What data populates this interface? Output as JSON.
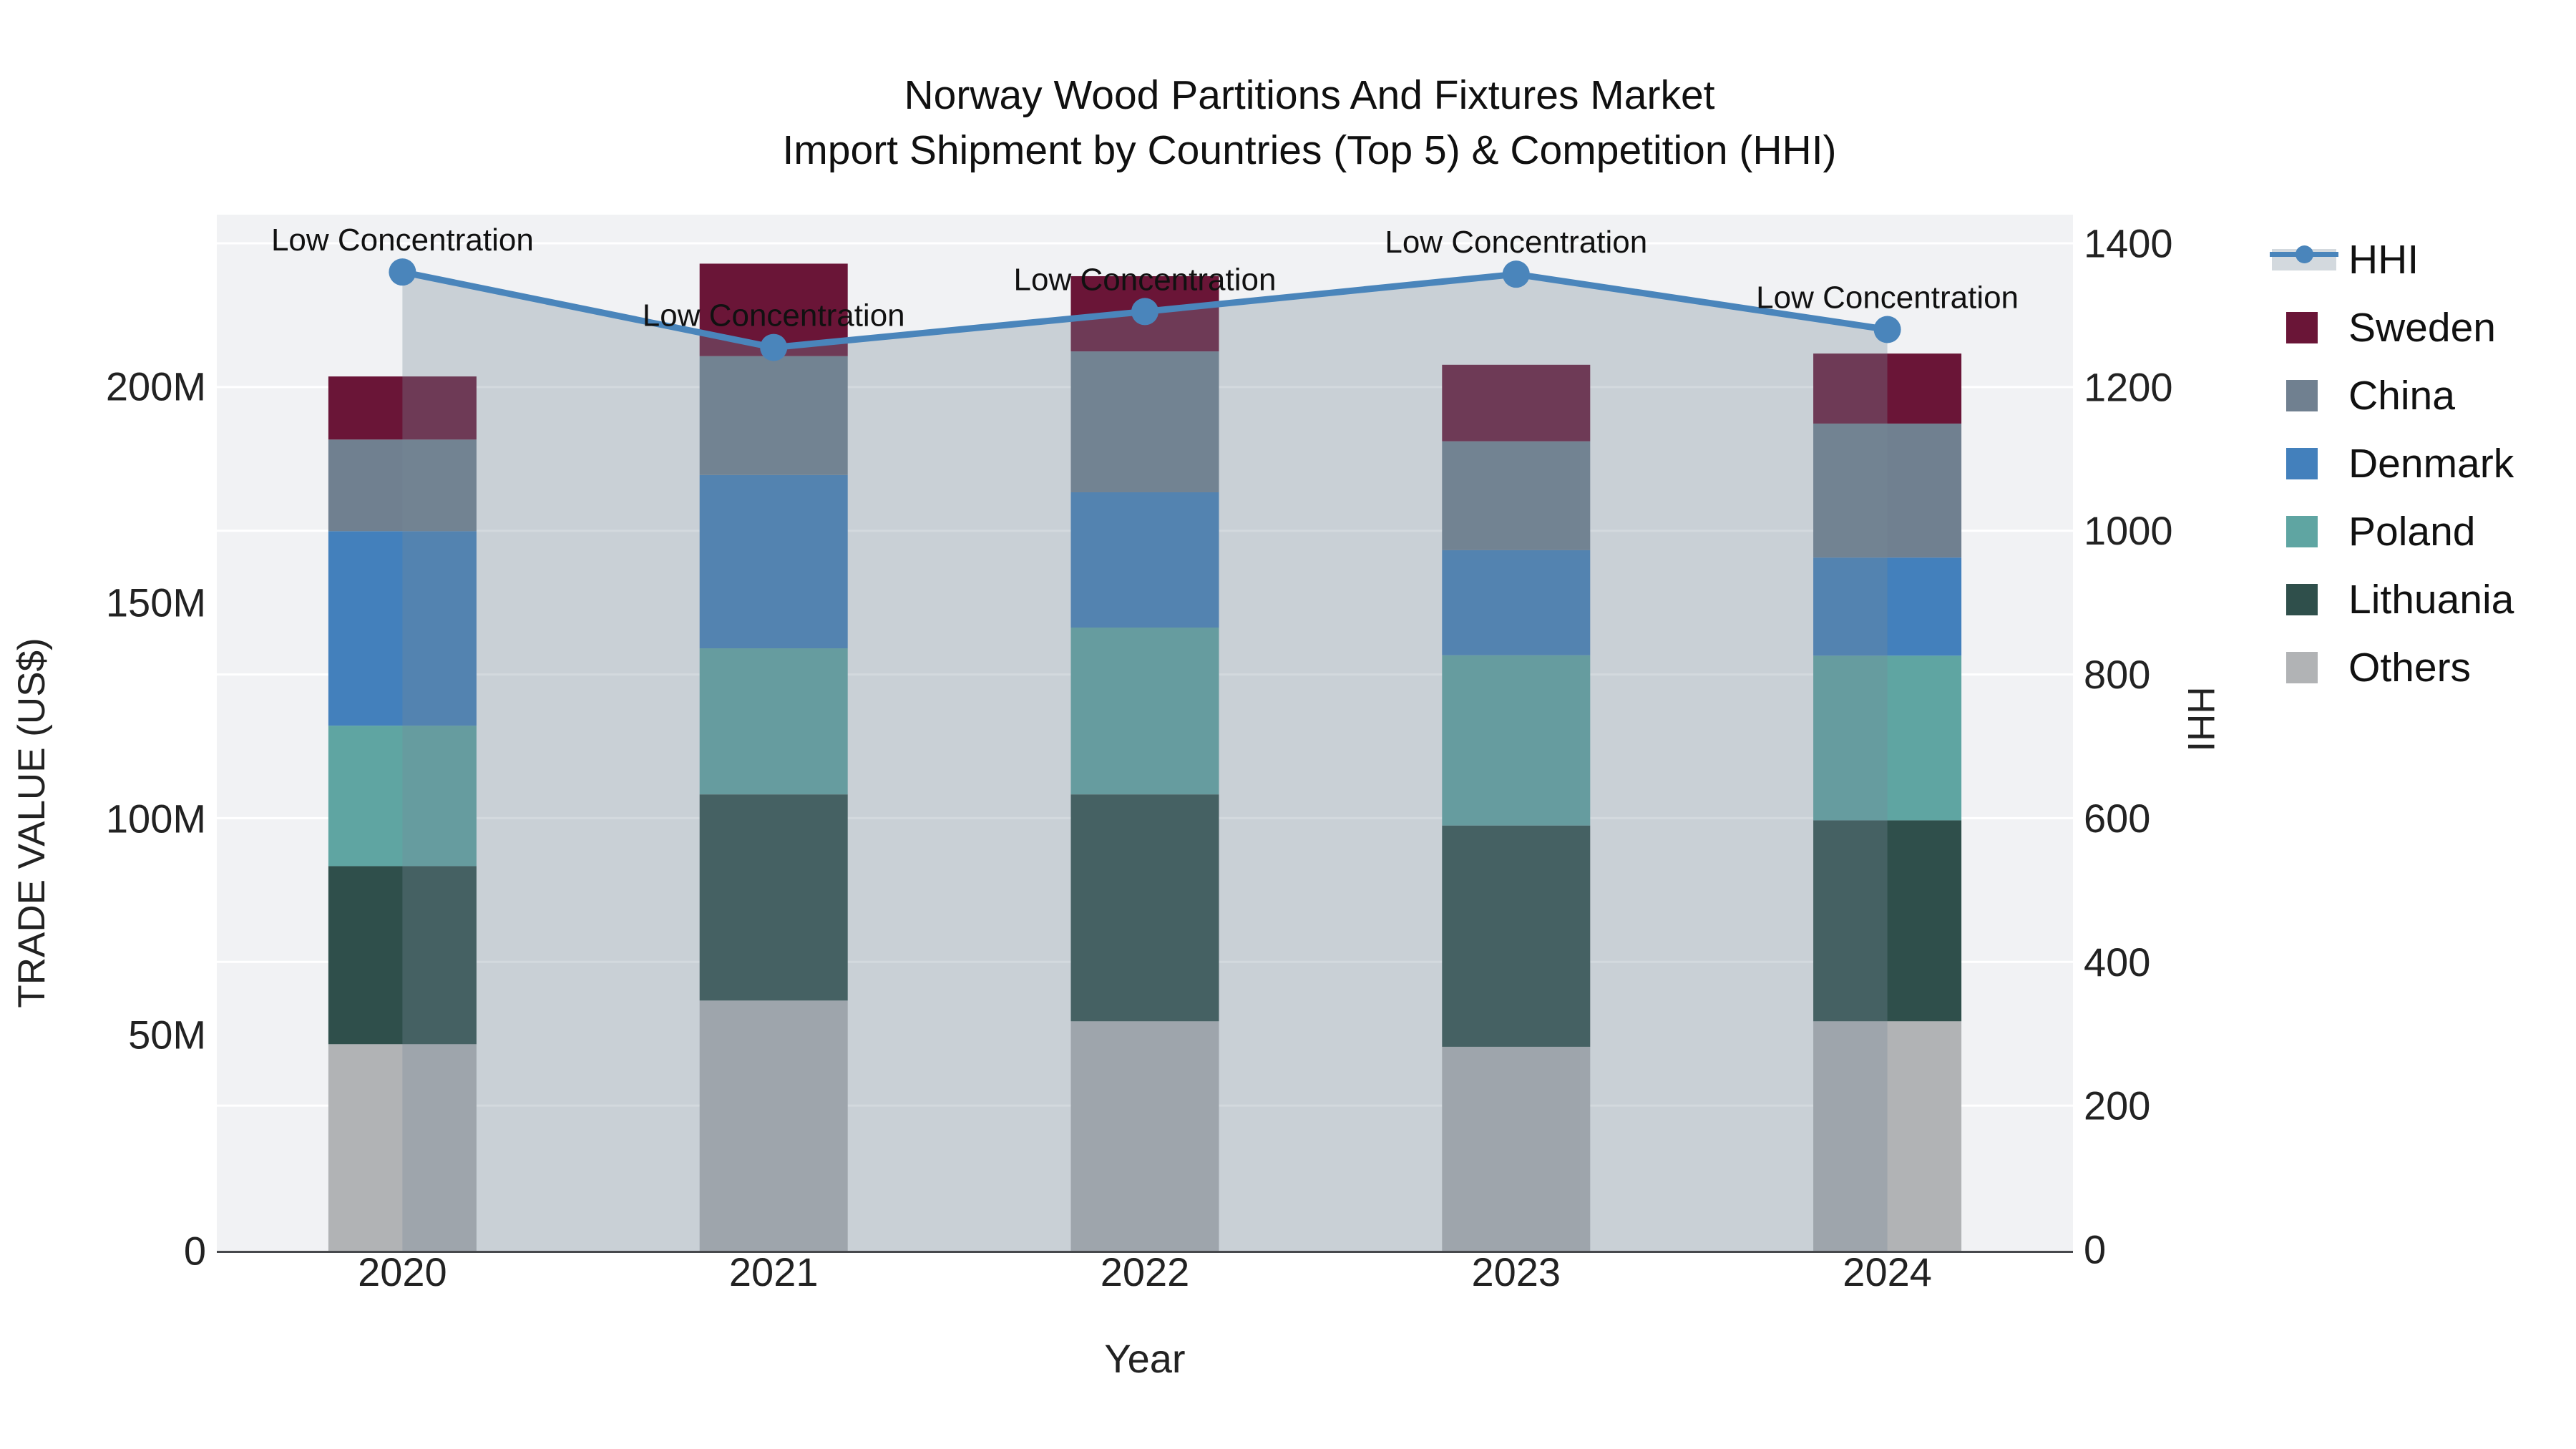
{
  "title": {
    "line1": "Norway Wood Partitions And Fixtures Market",
    "line2": "Import Shipment by Countries (Top 5) & Competition (HHI)"
  },
  "chart_data": {
    "type": "bar",
    "mode": "stacked-bars-with-line-overlay",
    "categories": [
      "2020",
      "2021",
      "2022",
      "2023",
      "2024"
    ],
    "value_unit": "millions USD",
    "series": [
      {
        "name": "Sweden",
        "color": "#6A1537",
        "values": [
          14.6,
          21.4,
          17.4,
          17.7,
          16.2
        ]
      },
      {
        "name": "China",
        "color": "#708090",
        "values": [
          21.2,
          27.5,
          32.6,
          25.2,
          31.0
        ]
      },
      {
        "name": "Denmark",
        "color": "#4380BC",
        "values": [
          45.0,
          40.1,
          31.3,
          24.3,
          22.7
        ]
      },
      {
        "name": "Poland",
        "color": "#5FA5A2",
        "values": [
          32.5,
          33.8,
          38.6,
          39.4,
          38.1
        ]
      },
      {
        "name": "Lithuania",
        "color": "#2F4F4B",
        "values": [
          41.2,
          47.7,
          52.5,
          51.2,
          46.5
        ]
      },
      {
        "name": "Others",
        "color": "#B1B3B5",
        "values": [
          47.8,
          57.9,
          53.1,
          47.2,
          53.1
        ]
      }
    ],
    "stack_order_bottom_to_top": [
      "Others",
      "Lithuania",
      "Poland",
      "Denmark",
      "China",
      "Sweden"
    ],
    "totals": [
      202.3,
      228.4,
      225.5,
      205.0,
      207.6
    ],
    "line_series": {
      "name": "HHI",
      "color": "#4A85BB",
      "fill": "rgba(119,136,153,0.32)",
      "values": [
        1360,
        1255,
        1305,
        1357,
        1280
      ]
    },
    "annotations": [
      "Low Concentration",
      "Low Concentration",
      "Low Concentration",
      "Low Concentration",
      "Low Concentration"
    ],
    "axes": {
      "x": {
        "title": "Year"
      },
      "y_left": {
        "title": "TRADE VALUE (US$)",
        "ticks": [
          {
            "label": "0",
            "value": 0
          },
          {
            "label": "50M",
            "value": 50
          },
          {
            "label": "100M",
            "value": 100
          },
          {
            "label": "150M",
            "value": 150
          },
          {
            "label": "200M",
            "value": 200
          }
        ]
      },
      "y_right": {
        "title": "HHI",
        "range": [
          0,
          1400
        ],
        "ticks": [
          {
            "label": "0",
            "value": 0
          },
          {
            "label": "200",
            "value": 200
          },
          {
            "label": "400",
            "value": 400
          },
          {
            "label": "600",
            "value": 600
          },
          {
            "label": "800",
            "value": 800
          },
          {
            "label": "1000",
            "value": 1000
          },
          {
            "label": "1200",
            "value": 1200
          },
          {
            "label": "1400",
            "value": 1400
          }
        ]
      }
    },
    "legend_order": [
      "HHI",
      "Sweden",
      "China",
      "Denmark",
      "Poland",
      "Lithuania",
      "Others"
    ],
    "colors": {
      "plot_bg": "#F1F2F4",
      "grid": "#FFFFFF",
      "axis_line": "#46484C",
      "tick_text": "#222222",
      "annotation_text": "#111111"
    }
  }
}
